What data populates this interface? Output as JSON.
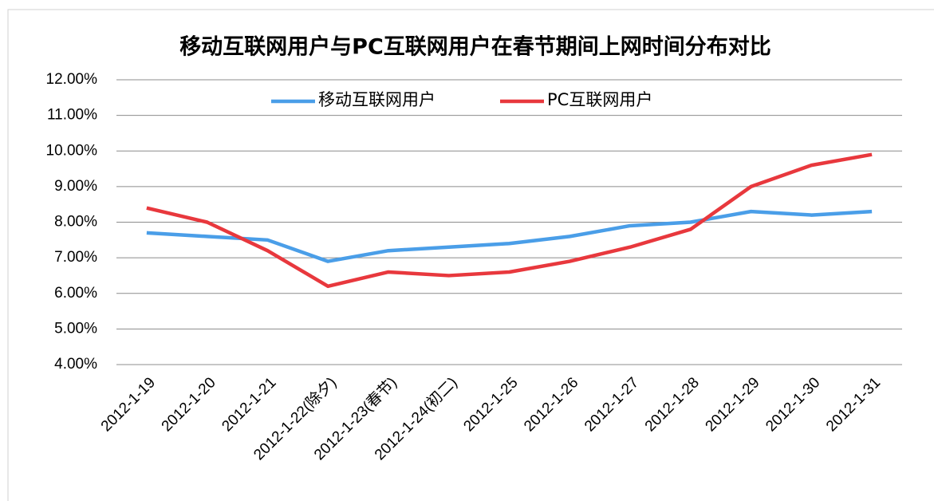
{
  "chart_data": {
    "type": "line",
    "title": "移动互联网用户与PC互联网用户在春节期间上网时间分布对比",
    "categories": [
      "2012-1-19",
      "2012-1-20",
      "2012-1-21",
      "2012-1-22(除夕)",
      "2012-1-23(春节)",
      "2012-1-24(初二)",
      "2012-1-25",
      "2012-1-26",
      "2012-1-27",
      "2012-1-28",
      "2012-1-29",
      "2012-1-30",
      "2012-1-31"
    ],
    "series": [
      {
        "name": "移动互联网用户",
        "color": "#4a9ee8",
        "values": [
          7.7,
          7.6,
          7.5,
          6.9,
          7.2,
          7.3,
          7.4,
          7.6,
          7.9,
          8.0,
          8.3,
          8.2,
          8.3
        ]
      },
      {
        "name": "PC互联网用户",
        "color": "#e8383d",
        "values": [
          8.4,
          8.0,
          7.2,
          6.2,
          6.6,
          6.5,
          6.6,
          6.9,
          7.3,
          7.8,
          9.0,
          9.6,
          9.9
        ]
      }
    ],
    "ylim": [
      4,
      12
    ],
    "yticks": [
      {
        "value": 4,
        "label": "4.00%"
      },
      {
        "value": 5,
        "label": "5.00%"
      },
      {
        "value": 6,
        "label": "6.00%"
      },
      {
        "value": 7,
        "label": "7.00%"
      },
      {
        "value": 8,
        "label": "8.00%"
      },
      {
        "value": 9,
        "label": "9.00%"
      },
      {
        "value": 10,
        "label": "10.00%"
      },
      {
        "value": 11,
        "label": "11.00%"
      },
      {
        "value": 12,
        "label": "12.00%"
      }
    ],
    "grid": true,
    "legend": "top"
  }
}
